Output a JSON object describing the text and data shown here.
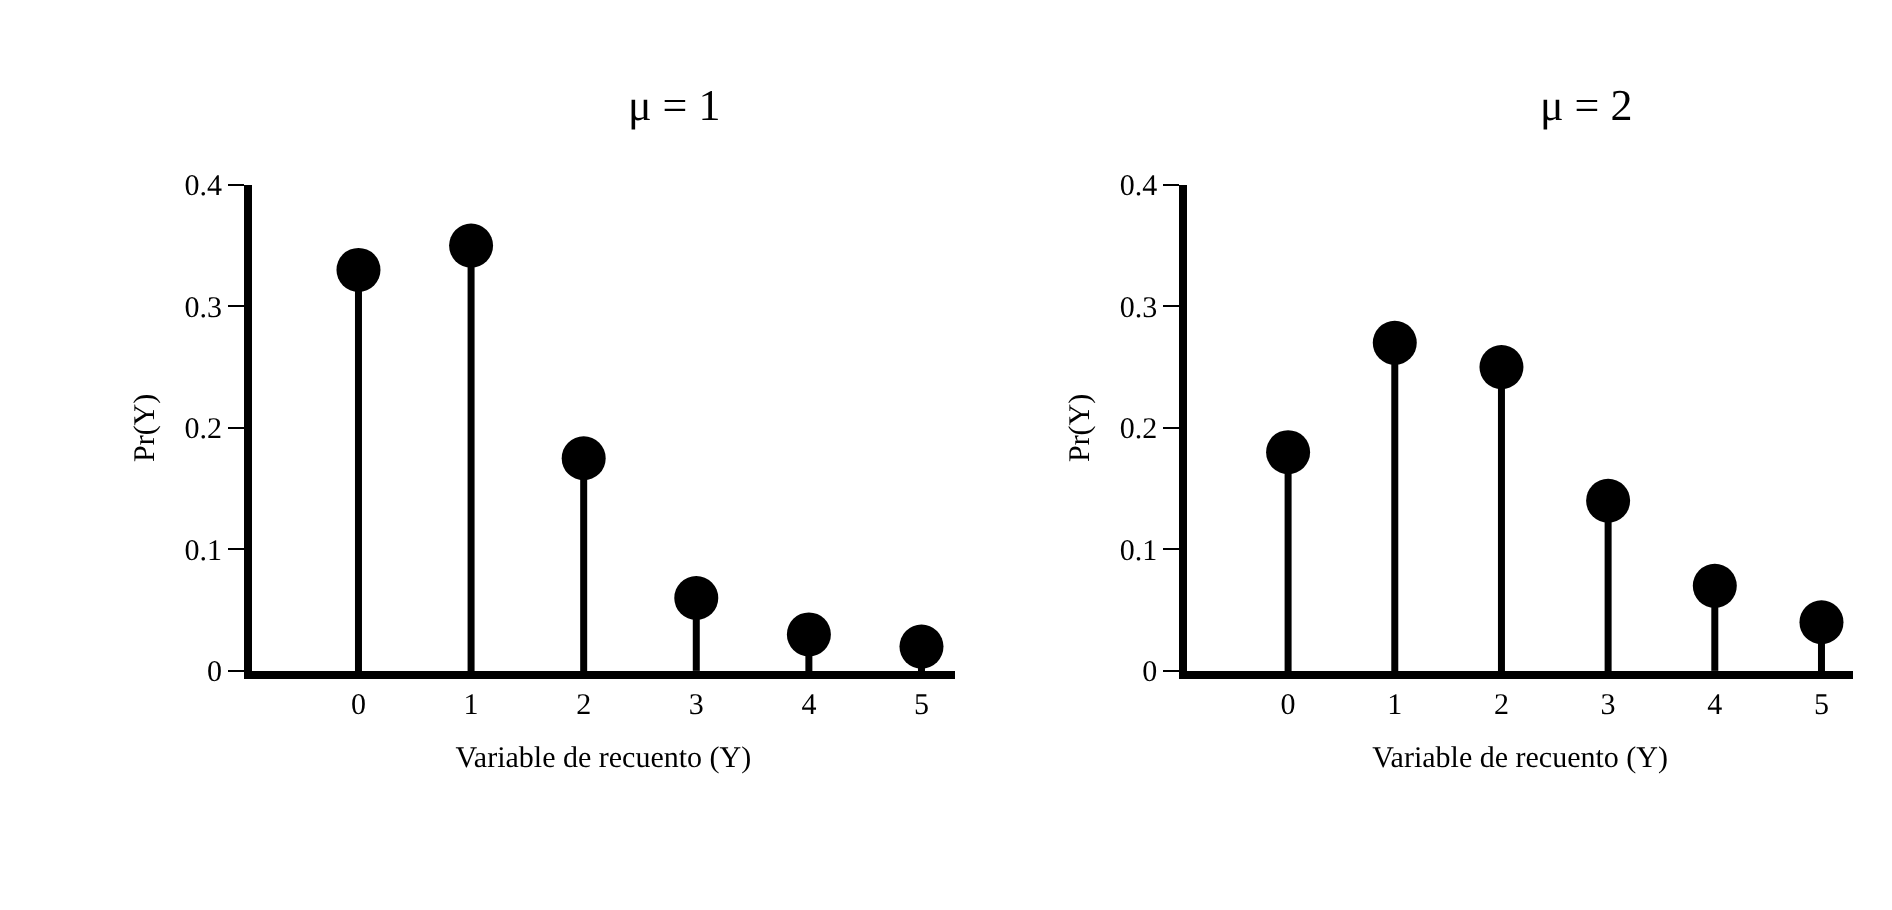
{
  "chart_data": [
    {
      "type": "lollipop",
      "title": "μ = 1",
      "xlabel": "Variable de recuento (Y)",
      "ylabel": "Pr(Y)",
      "categories": [
        "0",
        "1",
        "2",
        "3",
        "4",
        "5"
      ],
      "values": [
        0.33,
        0.35,
        0.175,
        0.06,
        0.03,
        0.02
      ],
      "color": "#000000",
      "marker": "circle",
      "ylim": [
        0,
        0.4
      ],
      "yticks": [
        0,
        0.1,
        0.2,
        0.3,
        0.4
      ]
    },
    {
      "type": "lollipop",
      "title": "μ = 2",
      "xlabel": "Variable de recuento (Y)",
      "ylabel": "Pr(Y)",
      "categories": [
        "0",
        "1",
        "2",
        "3",
        "4",
        "5"
      ],
      "values": [
        0.18,
        0.27,
        0.25,
        0.14,
        0.07,
        0.04
      ],
      "color": "#000000",
      "marker": "circle",
      "ylim": [
        0,
        0.4
      ],
      "yticks": [
        0,
        0.1,
        0.2,
        0.3,
        0.4
      ]
    }
  ]
}
